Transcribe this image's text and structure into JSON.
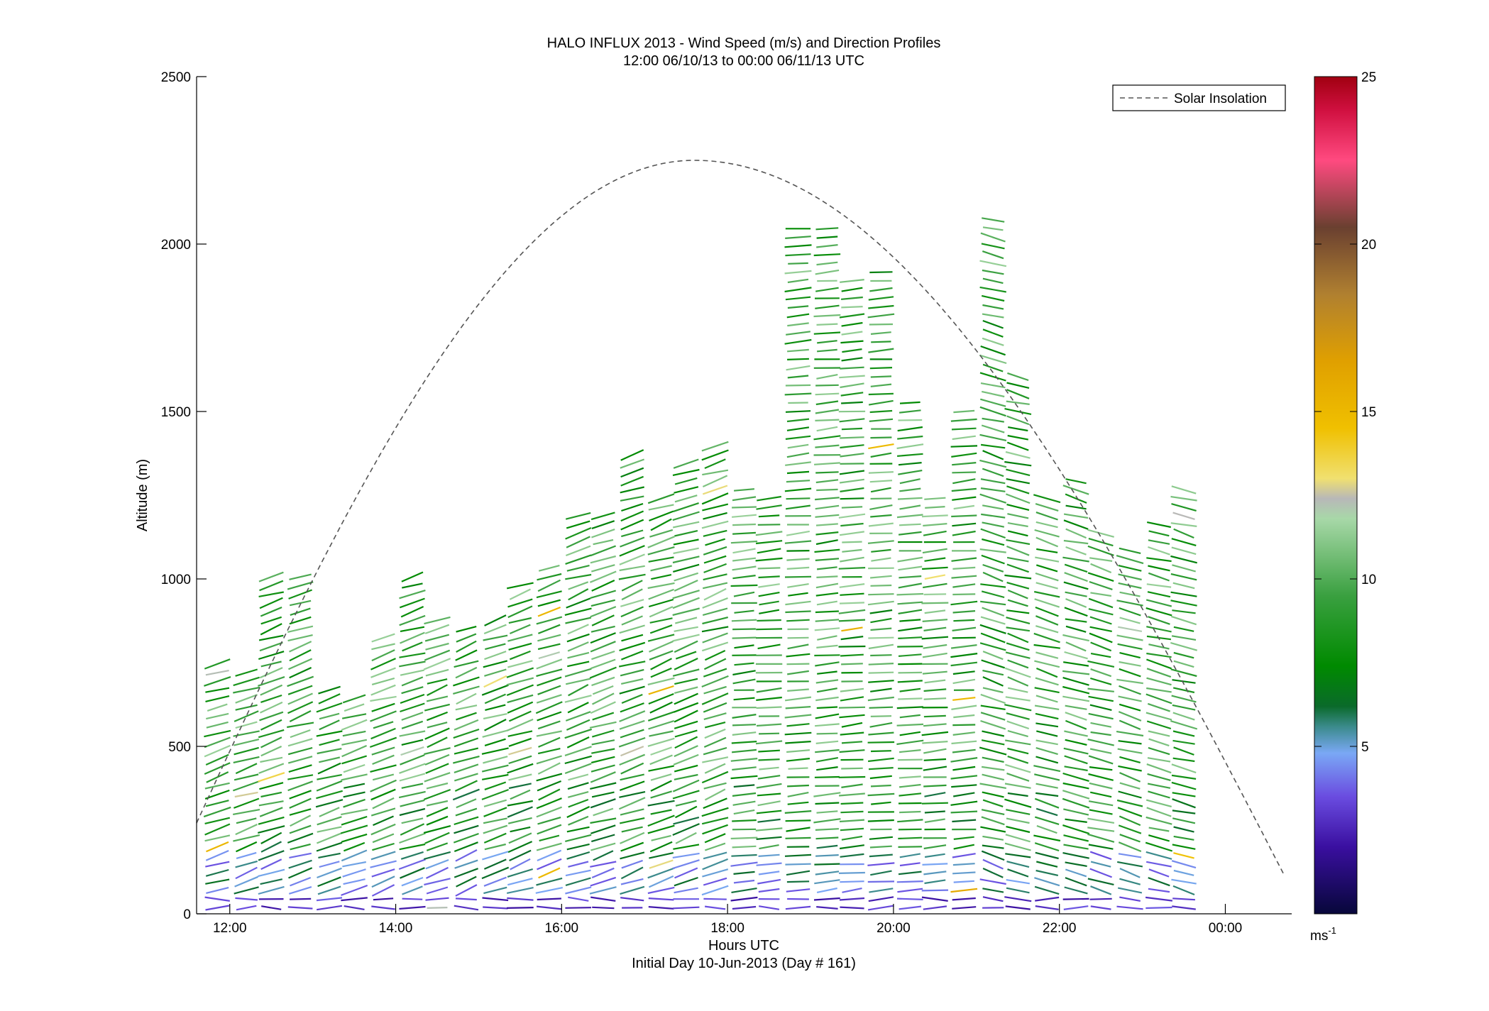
{
  "chart_data": {
    "type": "vector-field",
    "title": "HALO INFLUX 2013 - Wind Speed (m/s) and Direction Profiles",
    "subtitle": "12:00 06/10/13 to 00:00 06/11/13  UTC",
    "xlabel": "Hours UTC",
    "footer": "Initial Day 10-Jun-2013 (Day # 161)",
    "ylabel": "Altitude (m)",
    "xlim": [
      11.6,
      24.8
    ],
    "ylim": [
      0,
      2500
    ],
    "x_ticks": [
      12,
      14,
      16,
      18,
      20,
      22,
      24
    ],
    "x_tick_labels": [
      "12:00",
      "14:00",
      "16:00",
      "18:00",
      "20:00",
      "22:00",
      "00:00"
    ],
    "y_ticks": [
      0,
      500,
      1000,
      1500,
      2000,
      2500
    ],
    "y_tick_labels": [
      "0",
      "500",
      "1000",
      "1500",
      "2000",
      "2500"
    ],
    "legend": {
      "label": "Solar Insolation",
      "placement": "top-right",
      "style": "dashed"
    },
    "solar_insolation_curve": {
      "peak_time": 17.6,
      "peak_altitude": 2250,
      "start": [
        11.6,
        400
      ],
      "end": [
        24.7,
        105
      ]
    },
    "colorbar": {
      "ticks": [
        5,
        10,
        15,
        20,
        25
      ],
      "tick_labels": [
        "5",
        "10",
        "15",
        "20",
        "25"
      ],
      "range": [
        0,
        25
      ],
      "unit_label": "ms",
      "unit_exponent": "-1",
      "stops": [
        {
          "v": 0,
          "c": "#07073a"
        },
        {
          "v": 2,
          "c": "#3a0fa0"
        },
        {
          "v": 3.5,
          "c": "#6a4ce0"
        },
        {
          "v": 4.8,
          "c": "#7aa8f5"
        },
        {
          "v": 5.6,
          "c": "#3a8a8a"
        },
        {
          "v": 6.2,
          "c": "#0a6a2a"
        },
        {
          "v": 7.4,
          "c": "#008a00"
        },
        {
          "v": 9.5,
          "c": "#3aa040"
        },
        {
          "v": 11.8,
          "c": "#a8d8a8"
        },
        {
          "v": 12.4,
          "c": "#b8b8b8"
        },
        {
          "v": 13.0,
          "c": "#f0e070"
        },
        {
          "v": 14.5,
          "c": "#f0c000"
        },
        {
          "v": 16.5,
          "c": "#e0a000"
        },
        {
          "v": 18.5,
          "c": "#b08030"
        },
        {
          "v": 20.5,
          "c": "#6a4030"
        },
        {
          "v": 22.5,
          "c": "#ff4a80"
        },
        {
          "v": 24,
          "c": "#d01040"
        },
        {
          "v": 25,
          "c": "#a00010"
        }
      ]
    },
    "profiles": [
      {
        "t": 11.85,
        "top": 760,
        "vecs": []
      },
      {
        "t": 12.2,
        "top": 720,
        "vecs": []
      },
      {
        "t": 12.5,
        "top": 1010,
        "vecs": []
      },
      {
        "t": 12.85,
        "top": 1020,
        "vecs": []
      },
      {
        "t": 13.2,
        "top": 690,
        "vecs": []
      },
      {
        "t": 13.5,
        "top": 650,
        "vecs": []
      },
      {
        "t": 13.85,
        "top": 830,
        "vecs": []
      },
      {
        "t": 14.2,
        "top": 1010,
        "vecs": []
      },
      {
        "t": 14.5,
        "top": 890,
        "vecs": []
      },
      {
        "t": 14.85,
        "top": 850,
        "vecs": []
      },
      {
        "t": 15.2,
        "top": 880,
        "vecs": []
      },
      {
        "t": 15.5,
        "top": 1000,
        "vecs": []
      },
      {
        "t": 15.85,
        "top": 1040,
        "vecs": []
      },
      {
        "t": 16.2,
        "top": 1190,
        "vecs": []
      },
      {
        "t": 16.5,
        "top": 1200,
        "vecs": []
      },
      {
        "t": 16.85,
        "top": 1390,
        "vecs": []
      },
      {
        "t": 17.2,
        "top": 1250,
        "vecs": []
      },
      {
        "t": 17.5,
        "top": 1350,
        "vecs": []
      },
      {
        "t": 17.85,
        "top": 1400,
        "vecs": []
      },
      {
        "t": 18.2,
        "top": 1290,
        "vecs": []
      },
      {
        "t": 18.5,
        "top": 1250,
        "vecs": []
      },
      {
        "t": 18.85,
        "top": 2050,
        "vecs": []
      },
      {
        "t": 19.2,
        "top": 2050,
        "vecs": []
      },
      {
        "t": 19.5,
        "top": 1900,
        "vecs": []
      },
      {
        "t": 19.85,
        "top": 1920,
        "vecs": []
      },
      {
        "t": 20.2,
        "top": 1540,
        "vecs": []
      },
      {
        "t": 20.5,
        "top": 1250,
        "vecs": []
      },
      {
        "t": 20.85,
        "top": 1500,
        "vecs": []
      },
      {
        "t": 21.2,
        "top": 2090,
        "vecs": []
      },
      {
        "t": 21.5,
        "top": 1620,
        "vecs": []
      },
      {
        "t": 21.85,
        "top": 1250,
        "vecs": []
      },
      {
        "t": 22.2,
        "top": 1310,
        "vecs": []
      },
      {
        "t": 22.5,
        "top": 1160,
        "vecs": []
      },
      {
        "t": 22.85,
        "top": 1100,
        "vecs": []
      },
      {
        "t": 23.2,
        "top": 1180,
        "vecs": []
      },
      {
        "t": 23.5,
        "top": 1270,
        "vecs": []
      }
    ]
  }
}
